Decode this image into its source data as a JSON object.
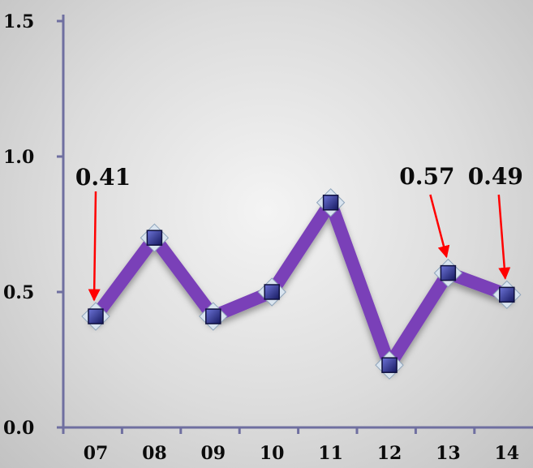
{
  "chart_data": {
    "type": "line",
    "categories": [
      "07",
      "08",
      "09",
      "10",
      "11",
      "12",
      "13",
      "14"
    ],
    "series": [
      {
        "values": [
          0.41,
          0.7,
          0.41,
          0.5,
          0.83,
          0.23,
          0.57,
          0.49
        ]
      }
    ],
    "ylim": [
      0.0,
      1.5
    ],
    "yticks": [
      "0.0",
      "0.5",
      "1.0",
      "1.5"
    ],
    "annotations": [
      {
        "category": "07",
        "text": "0.41"
      },
      {
        "category": "13",
        "text": "0.57"
      },
      {
        "category": "14",
        "text": "0.49"
      }
    ],
    "grid": false,
    "title": "",
    "xlabel": "",
    "ylabel": "",
    "colors": {
      "line": "#7a3fb8",
      "marker": "#2b2f8a",
      "axis": "#6f6fa0",
      "arrow": "#ff0000"
    }
  }
}
